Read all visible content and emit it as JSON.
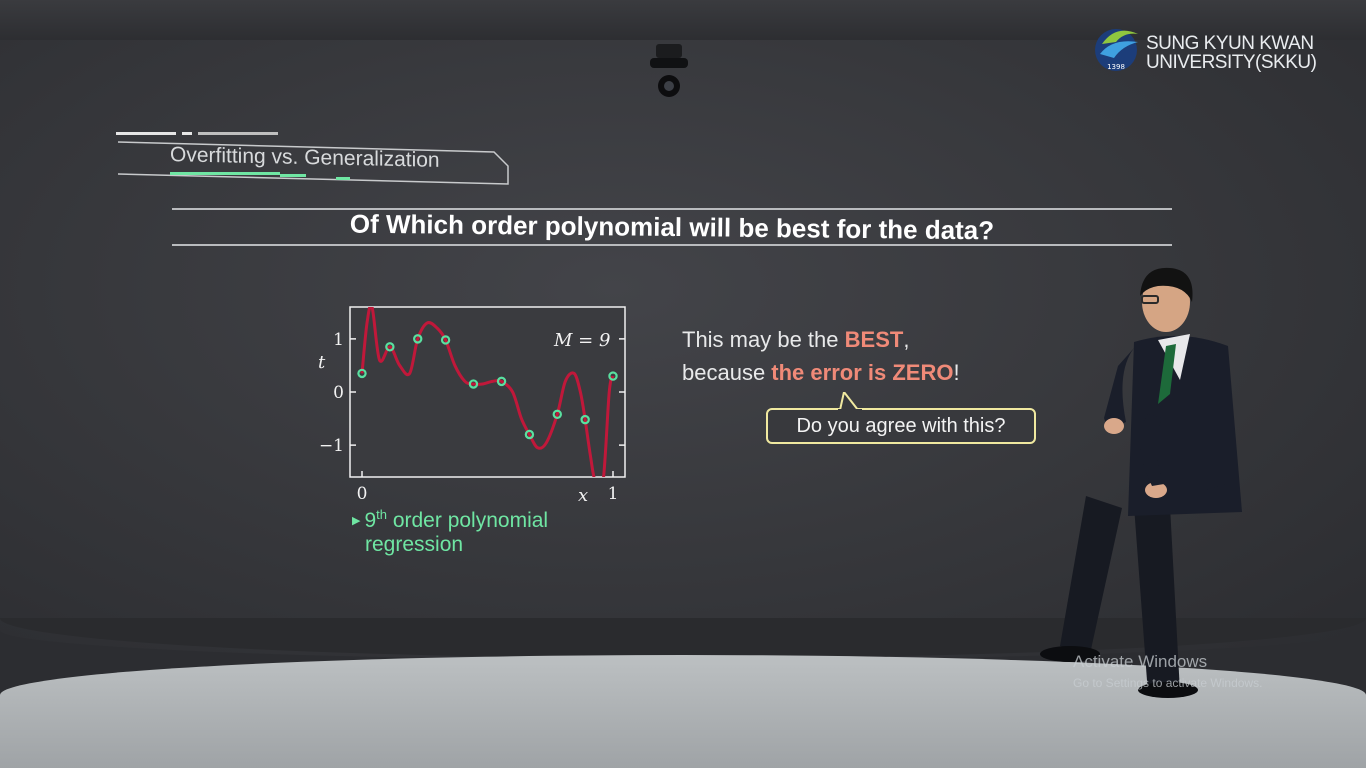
{
  "logo": {
    "line1": "SUNG KYUN KWAN",
    "line2": "UNIVERSITY(SKKU)",
    "emblem_year": "1398"
  },
  "slide": {
    "section_label": "Overfitting vs. Generalization",
    "question": "Of Which order polynomial will be best for the data?",
    "plot": {
      "m_label": "M = 9",
      "y_axis_label": "t",
      "x_axis_label": "x",
      "x_ticks": [
        "0",
        "1"
      ],
      "y_ticks": [
        "1",
        "0",
        "−1"
      ]
    },
    "caption": {
      "line1_prefix": "9",
      "line1_sup": "th",
      "line1_suffix": " order polynomial",
      "line2": "regression"
    },
    "claim": {
      "line1_prefix": "This may be the ",
      "line1_highlight": "BEST",
      "line1_suffix": ",",
      "line2_prefix": "because ",
      "line2_highlight": "the error is ZERO",
      "line2_suffix": "!"
    },
    "bubble_text": "Do you agree with this?"
  },
  "watermark": {
    "title": "Activate Windows",
    "subtitle": "Go to Settings to activate Windows."
  },
  "chart_data": {
    "type": "scatter",
    "title": "",
    "annotation": "M = 9",
    "xlabel": "x",
    "ylabel": "t",
    "xlim": [
      0,
      1
    ],
    "ylim": [
      -1.6,
      1.6
    ],
    "x_ticks": [
      0,
      1
    ],
    "y_ticks": [
      -1,
      0,
      1
    ],
    "grid": false,
    "series": [
      {
        "type": "scatter",
        "color": "#59e0a0",
        "x": [
          0.0,
          0.111,
          0.222,
          0.333,
          0.444,
          0.556,
          0.667,
          0.778,
          0.889,
          1.0
        ],
        "y": [
          0.35,
          0.85,
          1.0,
          0.98,
          0.15,
          0.2,
          -0.8,
          -0.42,
          -0.52,
          0.3
        ]
      },
      {
        "type": "line",
        "color": "#c0183a",
        "x": [
          0.0,
          0.02,
          0.04,
          0.07,
          0.111,
          0.15,
          0.19,
          0.222,
          0.26,
          0.3,
          0.333,
          0.37,
          0.41,
          0.444,
          0.48,
          0.52,
          0.556,
          0.6,
          0.635,
          0.667,
          0.7,
          0.735,
          0.778,
          0.81,
          0.845,
          0.87,
          0.889,
          0.91,
          0.93,
          0.96,
          0.985,
          1.0
        ],
        "y": [
          0.35,
          1.3,
          1.6,
          0.6,
          0.85,
          0.5,
          0.35,
          1.0,
          1.3,
          1.2,
          0.98,
          0.5,
          0.2,
          0.15,
          0.15,
          0.2,
          0.2,
          0.0,
          -0.5,
          -0.8,
          -1.05,
          -0.95,
          -0.42,
          0.2,
          0.35,
          0.0,
          -0.52,
          -1.2,
          -1.7,
          -1.7,
          0.0,
          0.3
        ]
      }
    ]
  }
}
